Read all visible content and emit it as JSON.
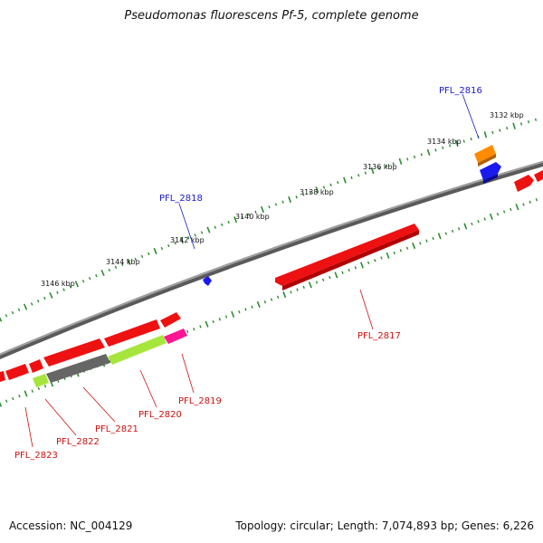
{
  "title": "Pseudomonas fluorescens Pf-5, complete genome",
  "footer": {
    "accession": "Accession: NC_004129",
    "summary": "Topology: circular; Length: 7,074,893 bp; Genes: 6,226"
  },
  "colors": {
    "backbone": "#808080",
    "tick": "#2e8b2e",
    "red": "#ee1111",
    "blue": "#1a1aee",
    "orange": "#ff8c00",
    "gray": "#666666",
    "lime": "#a6e63c",
    "magenta": "#ff1493",
    "label_forward": "#1a1acc",
    "label_reverse": "#cc1111"
  },
  "kbp_labels": [
    "3132 kbp",
    "3134 kbp",
    "3136 kbp",
    "3138 kbp",
    "3140 kbp",
    "3142 kbp",
    "3144 kbp",
    "3146 kbp"
  ],
  "genes": [
    {
      "label": "PFL_2816",
      "strand": "forward"
    },
    {
      "label": "PFL_2818",
      "strand": "forward"
    },
    {
      "label": "PFL_2817",
      "strand": "reverse"
    },
    {
      "label": "PFL_2819",
      "strand": "reverse"
    },
    {
      "label": "PFL_2820",
      "strand": "reverse"
    },
    {
      "label": "PFL_2821",
      "strand": "reverse"
    },
    {
      "label": "PFL_2822",
      "strand": "reverse"
    },
    {
      "label": "PFL_2823",
      "strand": "reverse"
    }
  ]
}
